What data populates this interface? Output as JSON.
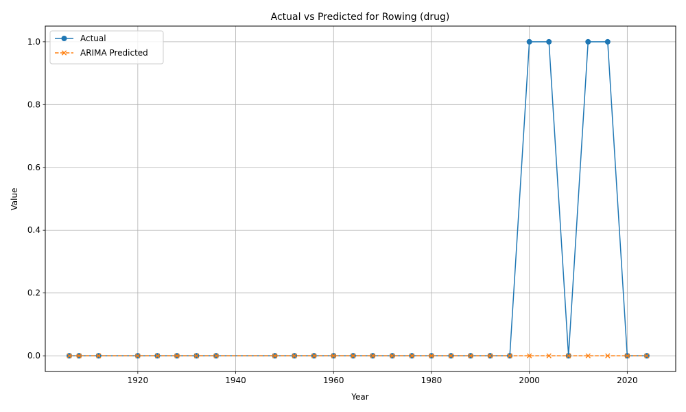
{
  "chart_data": {
    "type": "line",
    "title": "Actual vs Predicted for Rowing (drug)",
    "xlabel": "Year",
    "ylabel": "Value",
    "xlim": [
      1901.1,
      2029.9
    ],
    "ylim": [
      -0.05,
      1.05
    ],
    "x_ticks": [
      1920,
      1940,
      1960,
      1980,
      2000,
      2020
    ],
    "y_ticks": [
      0.0,
      0.2,
      0.4,
      0.6,
      0.8,
      1.0
    ],
    "grid": true,
    "legend_position": "top-left",
    "x": [
      1906,
      1908,
      1912,
      1920,
      1924,
      1928,
      1932,
      1936,
      1948,
      1952,
      1956,
      1960,
      1964,
      1968,
      1972,
      1976,
      1980,
      1984,
      1988,
      1992,
      1996,
      2000,
      2004,
      2008,
      2012,
      2016,
      2020,
      2024
    ],
    "series": [
      {
        "name": "Actual",
        "color": "#1f77b4",
        "marker": "circle",
        "line_style": "solid",
        "values": [
          0,
          0,
          0,
          0,
          0,
          0,
          0,
          0,
          0,
          0,
          0,
          0,
          0,
          0,
          0,
          0,
          0,
          0,
          0,
          0,
          0,
          1,
          1,
          0,
          1,
          1,
          0,
          0
        ]
      },
      {
        "name": "ARIMA Predicted",
        "color": "#ff7f0e",
        "marker": "x",
        "line_style": "dashed",
        "values": [
          0,
          0,
          0,
          0,
          0,
          0,
          0,
          0,
          0,
          0,
          0,
          0,
          0,
          0,
          0,
          0,
          0,
          0,
          0,
          0,
          0,
          0,
          0,
          0,
          0,
          0,
          0,
          0
        ]
      }
    ]
  }
}
